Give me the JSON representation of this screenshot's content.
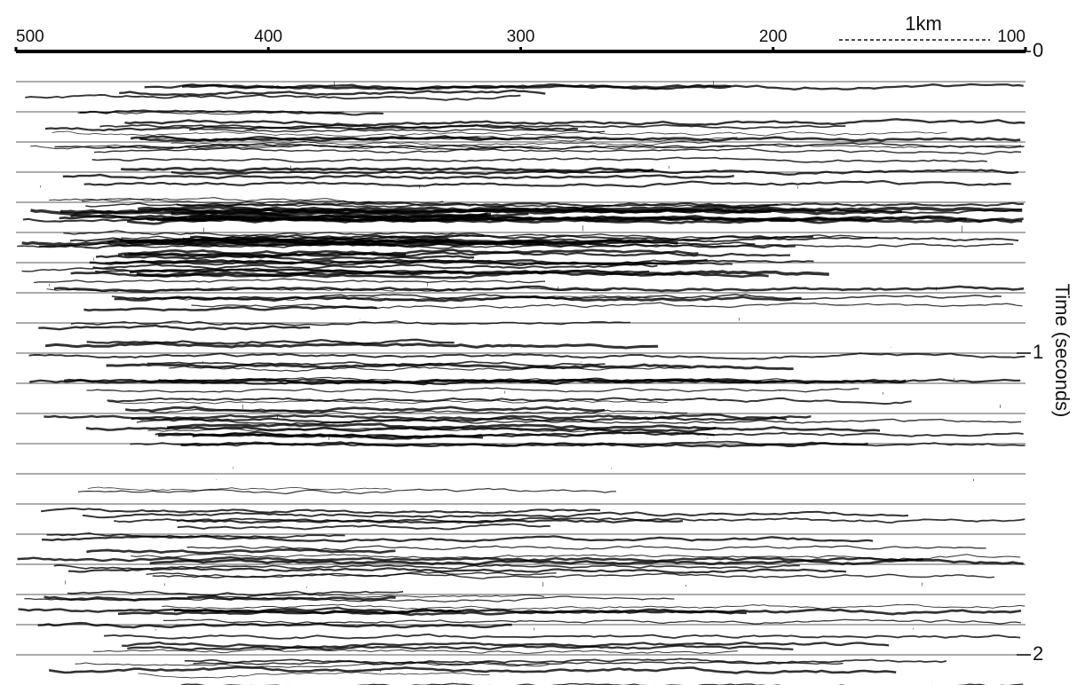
{
  "chart_data": {
    "type": "seismic",
    "scale_bar": "1km",
    "y_label": "Time (seconds)",
    "xlim": [
      500,
      100
    ],
    "xticks": [
      500,
      400,
      300,
      200,
      100
    ],
    "ylim": [
      0,
      2.1
    ],
    "yticks": [
      0,
      1,
      2
    ]
  }
}
